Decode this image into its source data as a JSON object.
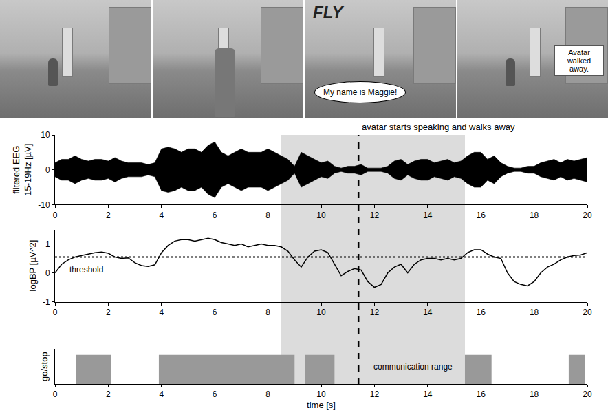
{
  "chart_data": [
    {
      "type": "envelope",
      "y_label": "filtered EEG 15-19Hz [µV]",
      "x": [
        0,
        0.25,
        0.5,
        0.75,
        1,
        1.25,
        1.5,
        1.75,
        2,
        2.25,
        2.5,
        2.75,
        3,
        3.25,
        3.5,
        3.75,
        4,
        4.25,
        4.5,
        4.75,
        5,
        5.25,
        5.5,
        5.75,
        6,
        6.25,
        6.5,
        6.75,
        7,
        7.25,
        7.5,
        7.75,
        8,
        8.25,
        8.5,
        8.75,
        9,
        9.25,
        9.5,
        9.75,
        10,
        10.25,
        10.5,
        10.75,
        11,
        11.25,
        11.5,
        11.75,
        12,
        12.25,
        12.5,
        12.75,
        13,
        13.25,
        13.5,
        13.75,
        14,
        14.25,
        14.5,
        14.75,
        15,
        15.25,
        15.5,
        15.75,
        16,
        16.25,
        16.5,
        16.75,
        17,
        17.25,
        17.5,
        17.75,
        18,
        18.25,
        18.5,
        18.75,
        19,
        19.25,
        19.5,
        19.75,
        20
      ],
      "upper": [
        2,
        3,
        3,
        4,
        3,
        2.5,
        3,
        3,
        2.5,
        3.5,
        2.5,
        2,
        2,
        2,
        1.5,
        2,
        6,
        6.5,
        6,
        5,
        6,
        6,
        5,
        7,
        8,
        5,
        4,
        5,
        6,
        5,
        5,
        5,
        6,
        5,
        4,
        3,
        1,
        5,
        4,
        3,
        2,
        2.5,
        1,
        0.5,
        1,
        1,
        1.5,
        0.5,
        0.5,
        0.5,
        1,
        2.5,
        3,
        1.5,
        2.5,
        3,
        3,
        2,
        2.5,
        3,
        2,
        2.5,
        4,
        5,
        5,
        3,
        4,
        2,
        1,
        0.5,
        0.5,
        1,
        1,
        2,
        2.5,
        3,
        2,
        3,
        2.5,
        3,
        3.5
      ],
      "lower": [
        -2,
        -3,
        -3,
        -4,
        -3,
        -2.5,
        -3,
        -3,
        -2.5,
        -3.5,
        -2.5,
        -2,
        -2,
        -2,
        -1.5,
        -2,
        -6,
        -6.5,
        -6,
        -5,
        -6,
        -6,
        -5,
        -7,
        -8,
        -5,
        -4,
        -5,
        -6,
        -5,
        -5,
        -5,
        -6,
        -5,
        -4,
        -3,
        -1,
        -5,
        -4,
        -3,
        -2,
        -2.5,
        -1,
        -0.5,
        -1,
        -1,
        -1.5,
        -0.5,
        -0.5,
        -0.5,
        -1,
        -2.5,
        -3,
        -1.5,
        -2.5,
        -3,
        -3,
        -2,
        -2.5,
        -3,
        -2,
        -2.5,
        -4,
        -5,
        -5,
        -3,
        -4,
        -2,
        -1,
        -0.5,
        -0.5,
        -1,
        -1,
        -2,
        -2.5,
        -3,
        -2,
        -3,
        -2.5,
        -3,
        -3.5
      ],
      "color": "#000000",
      "xlim": [
        0,
        20
      ],
      "xticks": [
        0,
        2,
        4,
        6,
        8,
        10,
        12,
        14,
        16,
        18,
        20
      ],
      "ylim": [
        -10,
        10
      ],
      "yticks": [
        -10,
        0,
        10
      ]
    },
    {
      "type": "line",
      "y_label": "logBP [µV^2]",
      "x": [
        0,
        0.25,
        0.5,
        0.75,
        1,
        1.25,
        1.5,
        1.75,
        2,
        2.25,
        2.5,
        2.75,
        3,
        3.25,
        3.5,
        3.75,
        4,
        4.25,
        4.5,
        4.75,
        5,
        5.25,
        5.5,
        5.75,
        6,
        6.25,
        6.5,
        6.75,
        7,
        7.25,
        7.5,
        7.75,
        8,
        8.25,
        8.5,
        8.75,
        9,
        9.25,
        9.5,
        9.75,
        10,
        10.25,
        10.5,
        10.75,
        11,
        11.25,
        11.5,
        11.75,
        12,
        12.25,
        12.5,
        12.75,
        13,
        13.25,
        13.5,
        13.75,
        14,
        14.25,
        14.5,
        14.75,
        15,
        15.25,
        15.5,
        15.75,
        16,
        16.25,
        16.5,
        16.75,
        17,
        17.25,
        17.5,
        17.75,
        18,
        18.25,
        18.5,
        18.75,
        19,
        19.25,
        19.5,
        19.75,
        20
      ],
      "values": [
        0,
        0.3,
        0.45,
        0.55,
        0.6,
        0.65,
        0.7,
        0.72,
        0.68,
        0.55,
        0.5,
        0.52,
        0.35,
        0.25,
        0.22,
        0.28,
        0.7,
        0.95,
        1.1,
        1.15,
        1.15,
        1.1,
        1.15,
        1.2,
        1.15,
        1.05,
        1.0,
        0.95,
        1.0,
        0.9,
        0.95,
        1.0,
        0.95,
        0.95,
        0.9,
        0.75,
        0.45,
        0.2,
        0.55,
        0.75,
        0.8,
        0.7,
        0.3,
        -0.1,
        0.05,
        0.15,
        0.1,
        -0.3,
        -0.5,
        -0.4,
        0.0,
        0.2,
        0.3,
        0.0,
        0.3,
        0.45,
        0.5,
        0.5,
        0.45,
        0.5,
        0.45,
        0.5,
        0.7,
        0.8,
        0.8,
        0.65,
        0.55,
        0.5,
        0.0,
        -0.3,
        -0.4,
        -0.45,
        -0.3,
        0.0,
        0.2,
        0.3,
        0.45,
        0.55,
        0.6,
        0.62,
        0.7
      ],
      "color": "#000000",
      "threshold": {
        "value": 0.55,
        "label": "threshold"
      },
      "xlim": [
        0,
        20
      ],
      "xticks": [
        0,
        2,
        4,
        6,
        8,
        10,
        12,
        14,
        16,
        18,
        20
      ],
      "ylim": [
        -1,
        1.5
      ],
      "yticks": [
        -1,
        0,
        1
      ]
    },
    {
      "type": "intervals",
      "y_label": "go/stop",
      "x_label": "time [s]",
      "intervals": [
        [
          0.8,
          2.1
        ],
        [
          3.9,
          9.0
        ],
        [
          9.4,
          10.5
        ],
        [
          15.4,
          16.4
        ],
        [
          19.3,
          19.9
        ]
      ],
      "color": "#999999",
      "xlim": [
        0,
        20
      ],
      "xticks": [
        0,
        2,
        4,
        6,
        8,
        10,
        12,
        14,
        16,
        18,
        20
      ],
      "ylim": [
        0,
        1.2
      ],
      "tick_labels": "x"
    }
  ],
  "event": {
    "x": 11.4,
    "label": "avatar starts speaking and walks away"
  },
  "communication_range": {
    "x": [
      8.5,
      15.4
    ],
    "label": "communication range"
  },
  "screenshot_texts": {
    "sign": "FLY",
    "speech": "My name is Maggie!",
    "caption": "Avatar walked away."
  }
}
